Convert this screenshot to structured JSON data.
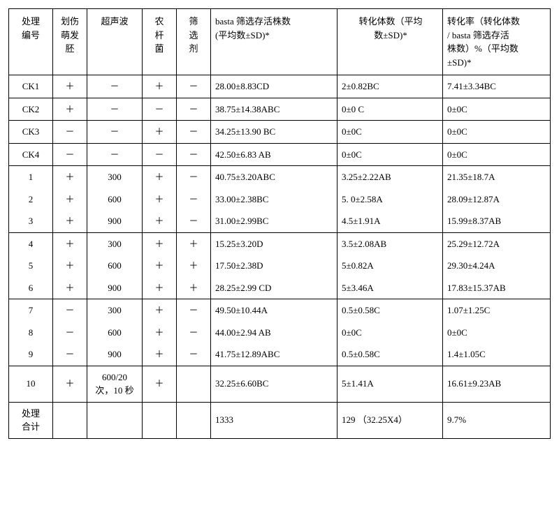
{
  "columns": [
    "处理\n编号",
    "划伤\n萌发\n胚",
    "超声波",
    "农\n杆\n菌",
    "筛\n选\n剂",
    "basta 筛选存活株数\n(平均数±SD)*",
    "转化体数（平均\n数±SD)*",
    "转化率（转化体数\n/ basta 筛选存活\n株数）%（平均数\n±SD)*"
  ],
  "rows": [
    {
      "cells": [
        "CK1",
        "＋",
        "－",
        "＋",
        "－",
        "28.00±8.83CD",
        "2±0.82BC",
        "7.41±3.34BC"
      ],
      "group": "a"
    },
    {
      "cells": [
        "CK2",
        "＋",
        "－",
        "－",
        "－",
        "38.75±14.38ABC",
        "0±0 C",
        "0±0C"
      ],
      "group": "b"
    },
    {
      "cells": [
        "CK3",
        "－",
        "－",
        "＋",
        "－",
        "34.25±13.90 BC",
        "0±0C",
        "0±0C"
      ],
      "group": "c"
    },
    {
      "cells": [
        "CK4",
        "－",
        "－",
        "－",
        "－",
        "42.50±6.83 AB",
        "0±0C",
        "0±0C"
      ],
      "group": "d"
    },
    {
      "cells": [
        "1",
        "＋",
        "300",
        "＋",
        "－",
        "40.75±3.20ABC",
        "3.25±2.22AB",
        "21.35±18.7A"
      ],
      "group": "e"
    },
    {
      "cells": [
        "2",
        "＋",
        "600",
        "＋",
        "－",
        "33.00±2.38BC",
        "5. 0±2.58A",
        "28.09±12.87A"
      ],
      "group": "e"
    },
    {
      "cells": [
        "3",
        "＋",
        "900",
        "＋",
        "－",
        "31.00±2.99BC",
        "4.5±1.91A",
        "15.99±8.37AB"
      ],
      "group": "e"
    },
    {
      "cells": [
        "4",
        "＋",
        "300",
        "＋",
        "＋",
        "15.25±3.20D",
        "3.5±2.08AB",
        "25.29±12.72A"
      ],
      "group": "f"
    },
    {
      "cells": [
        "5",
        "＋",
        "600",
        "＋",
        "＋",
        "17.50±2.38D",
        "5±0.82A",
        "29.30±4.24A"
      ],
      "group": "f"
    },
    {
      "cells": [
        "6",
        "＋",
        "900",
        "＋",
        "＋",
        "28.25±2.99 CD",
        "5±3.46A",
        "17.83±15.37AB"
      ],
      "group": "f"
    },
    {
      "cells": [
        "7",
        "－",
        "300",
        "＋",
        "－",
        "49.50±10.44A",
        "0.5±0.58C",
        "1.07±1.25C"
      ],
      "group": "g"
    },
    {
      "cells": [
        "8",
        "－",
        "600",
        "＋",
        "－",
        "44.00±2.94 AB",
        "0±0C",
        "0±0C"
      ],
      "group": "g"
    },
    {
      "cells": [
        "9",
        "－",
        "900",
        "＋",
        "－",
        "41.75±12.89ABC",
        "0.5±0.58C",
        "1.4±1.05C"
      ],
      "group": "g"
    },
    {
      "cells": [
        "10",
        "＋",
        "600/20\n次，10 秒",
        "＋",
        "",
        "32.25±6.60BC",
        "5±1.41A",
        "16.61±9.23AB"
      ],
      "group": "h"
    },
    {
      "cells": [
        "处理\n合计",
        "",
        "",
        "",
        "",
        "1333",
        "129 （32.25X4）",
        "9.7%"
      ],
      "group": "i"
    }
  ],
  "colClasses": [
    "c0",
    "c1",
    "c2",
    "c3",
    "c4",
    "c5",
    "c6",
    "c7"
  ],
  "headerClasses": [
    "c0",
    "c1",
    "c2",
    "c3",
    "c4",
    "c5",
    "c6 hc6",
    "c7 hc7"
  ]
}
